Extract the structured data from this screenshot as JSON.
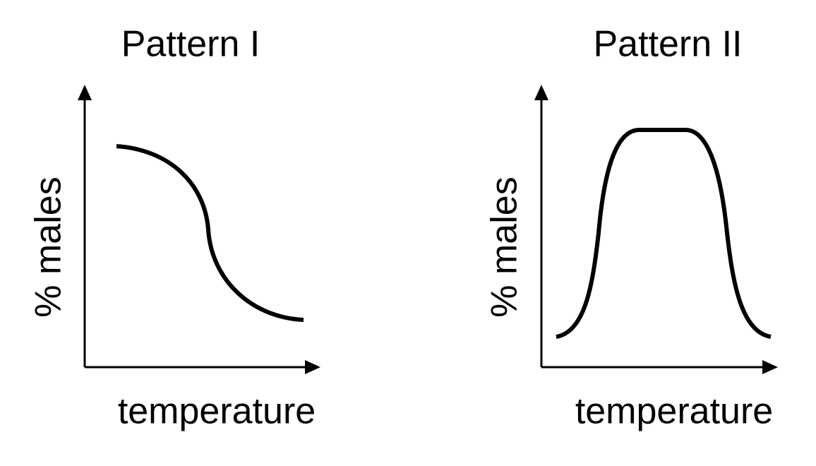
{
  "panels": [
    {
      "title": "Pattern I",
      "y_label": "% males",
      "x_label": "temperature"
    },
    {
      "title": "Pattern II",
      "y_label": "% males",
      "x_label": "temperature"
    }
  ]
}
